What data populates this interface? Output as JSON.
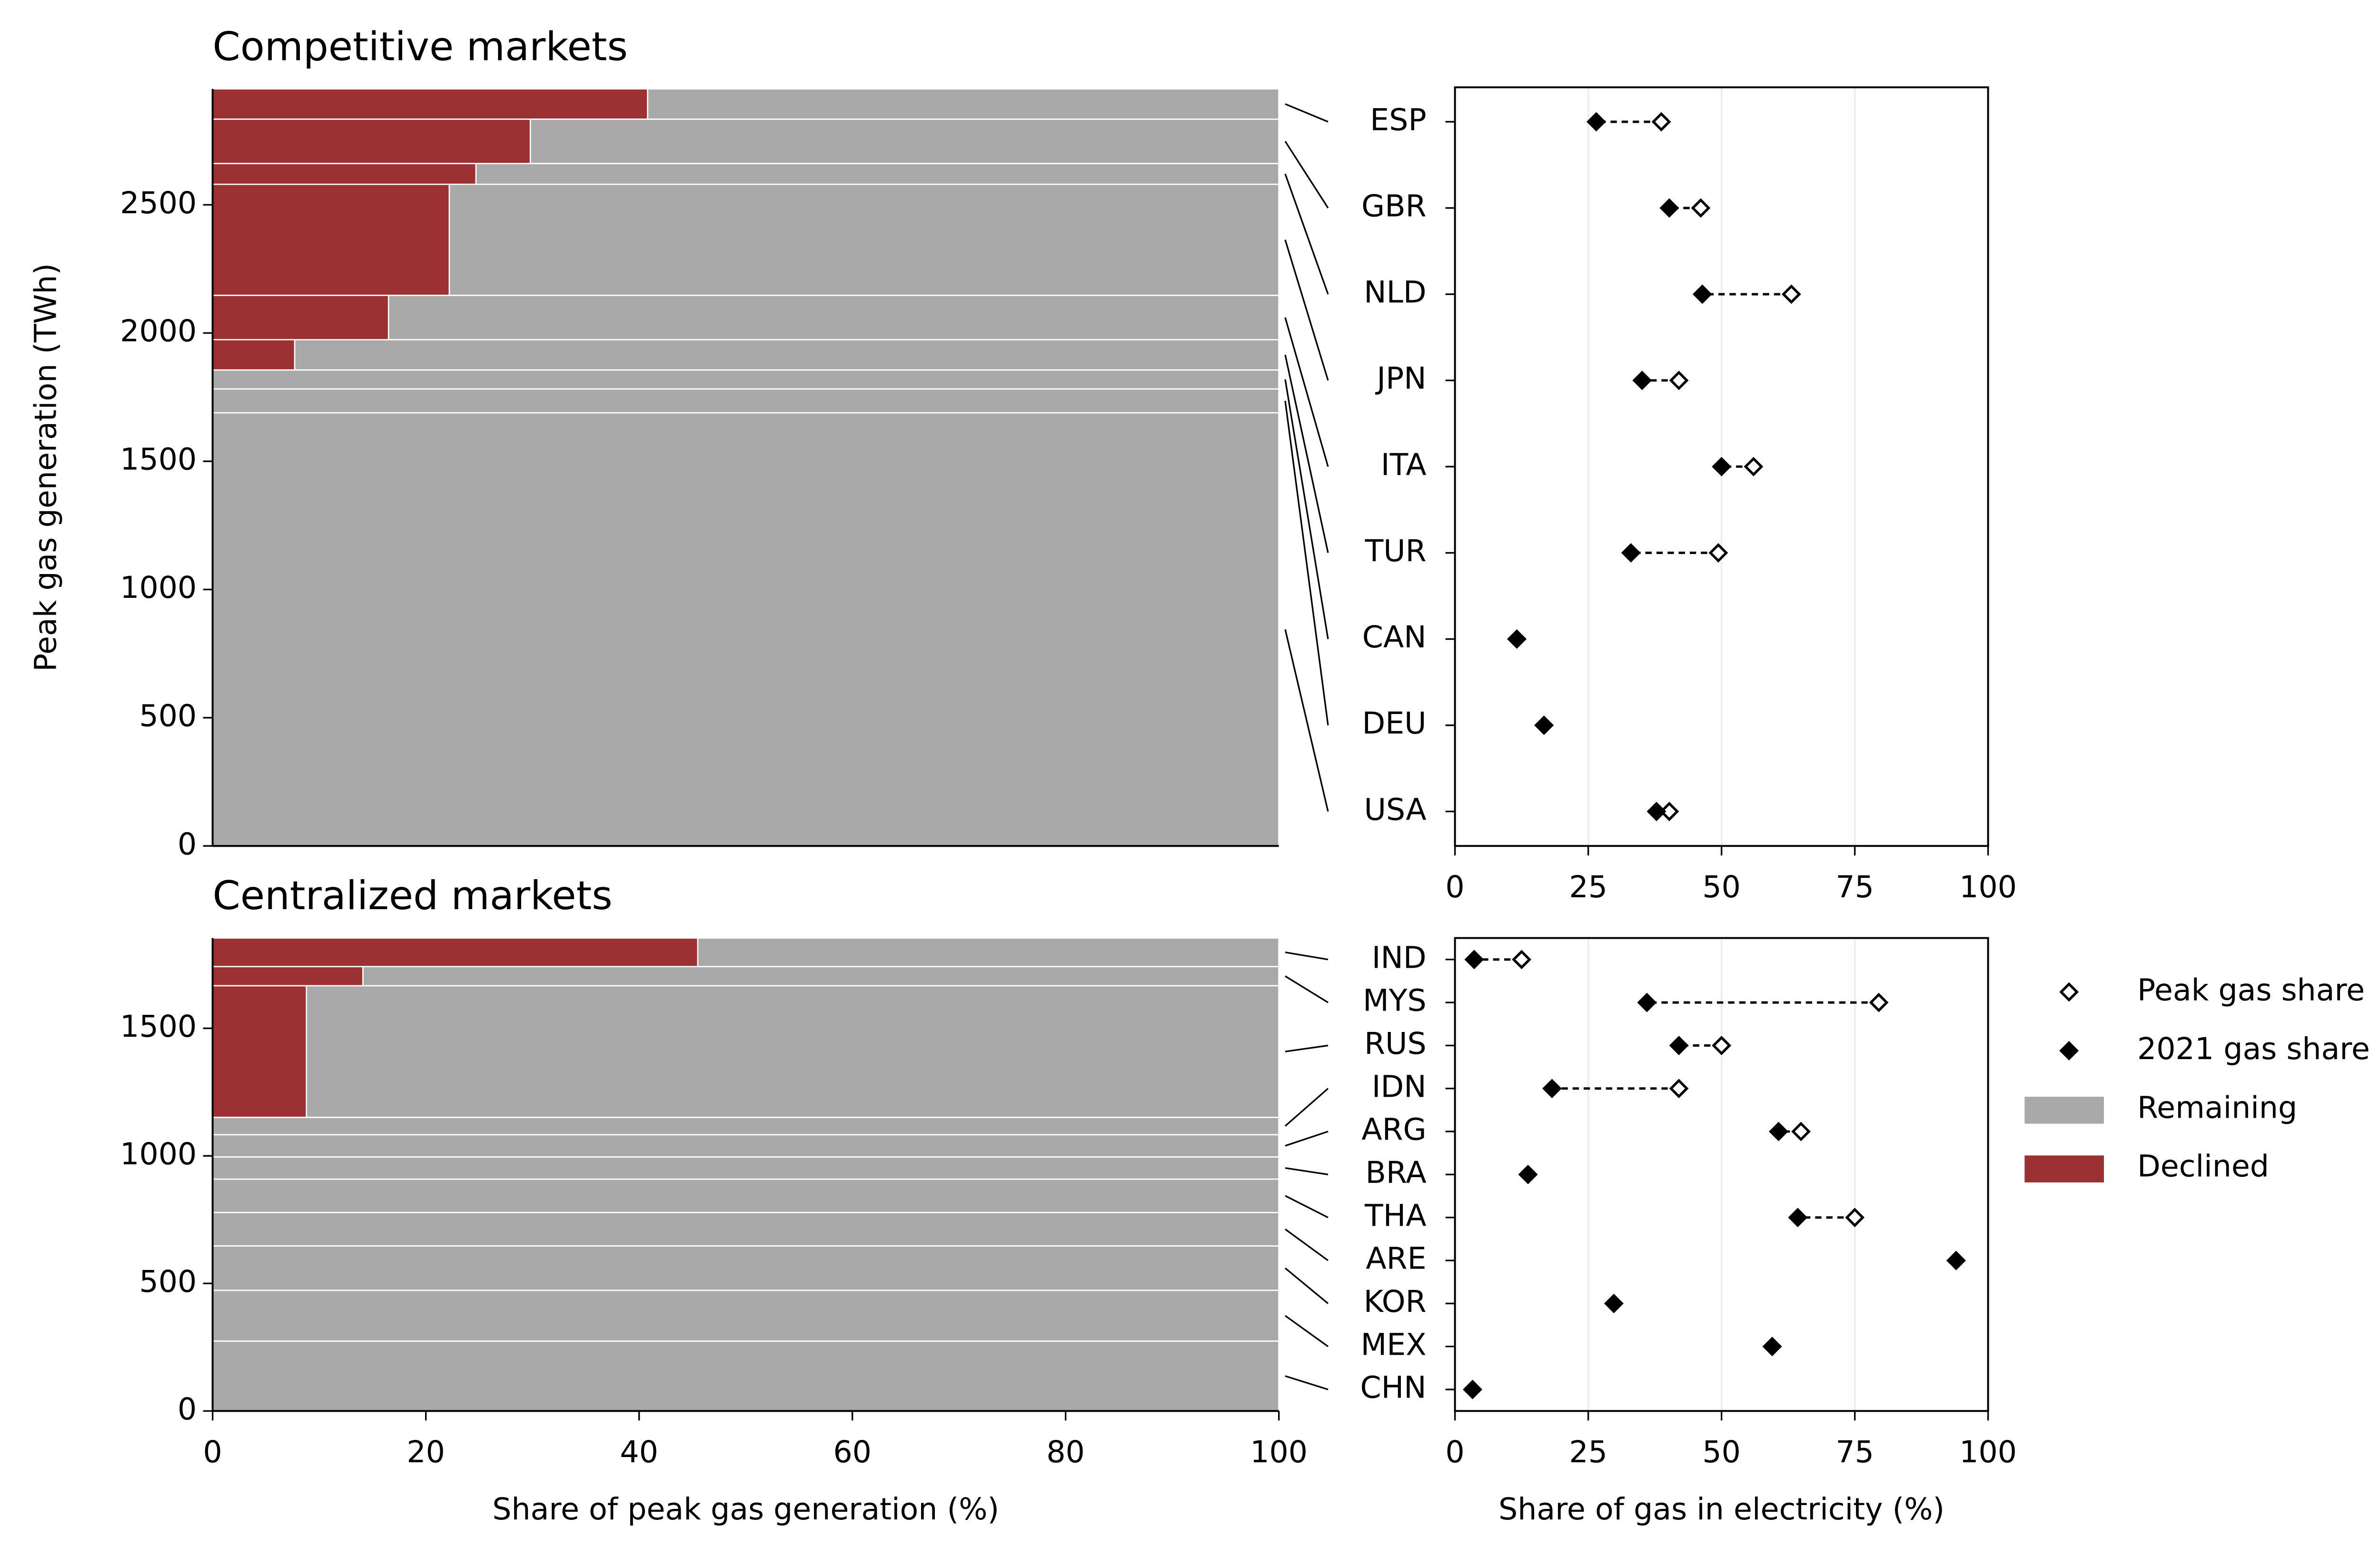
{
  "chart_data": [
    {
      "type": "mekko",
      "title": "Competitive markets",
      "ylabel": "Peak gas generation (TWh)",
      "sizes": [
        118,
        173,
        81,
        433,
        173,
        118,
        74,
        93,
        1689
      ],
      "series": [
        {
          "color": "#9b3133",
          "values": [
            40.8,
            29.8,
            24.7,
            22.2,
            16.5,
            7.7,
            0,
            0,
            0
          ]
        },
        {
          "color": "#a9a9a9",
          "values": [
            59.2,
            70.2,
            75.3,
            77.8,
            83.5,
            92.3,
            100,
            100,
            100
          ]
        }
      ],
      "xlim": [
        0,
        100
      ],
      "ylim": [
        0,
        2952
      ],
      "yticks": [
        0,
        500,
        1000,
        1500,
        2000,
        2500
      ]
    },
    {
      "type": "dumbbell",
      "categories": [
        "ESP",
        "GBR",
        "NLD",
        "JPN",
        "ITA",
        "TUR",
        "CAN",
        "DEU",
        "USA"
      ],
      "series": [
        {
          "color": "#000000",
          "values": [
            38.7,
            46.1,
            63.1,
            42.0,
            56.0,
            49.4,
            11.6,
            16.7,
            40.2
          ]
        },
        {
          "color": "#000000",
          "values": [
            26.5,
            40.2,
            46.4,
            35.1,
            50.0,
            33.0,
            11.6,
            16.7,
            37.8
          ]
        }
      ],
      "xlim": [
        0,
        100
      ],
      "xticks": [
        0,
        25,
        50,
        75,
        100
      ],
      "grid": true
    },
    {
      "type": "mekko",
      "title": "Centralized markets",
      "xlabel": "Share of peak gas generation (%)",
      "sizes": [
        112,
        75,
        516,
        68,
        87,
        87,
        131,
        131,
        174,
        199,
        274
      ],
      "series": [
        {
          "name": "Declined",
          "color": "#9b3133",
          "values": [
            45.5,
            14.1,
            8.8,
            0,
            0,
            0,
            0,
            0,
            0,
            0,
            0
          ]
        },
        {
          "name": "Remaining",
          "color": "#a9a9a9",
          "values": [
            54.5,
            85.9,
            91.2,
            100,
            100,
            100,
            100,
            100,
            100,
            100,
            100
          ]
        }
      ],
      "xlim": [
        0,
        100
      ],
      "xticks": [
        0,
        20,
        40,
        60,
        80,
        100
      ],
      "ylim": [
        0,
        1854
      ],
      "yticks": [
        0,
        500,
        1000,
        1500
      ]
    },
    {
      "type": "dumbbell",
      "xlabel": "Share of gas in electricity (%)",
      "categories": [
        "IND",
        "MYS",
        "RUS",
        "IDN",
        "ARG",
        "BRA",
        "THA",
        "ARE",
        "KOR",
        "MEX",
        "CHN"
      ],
      "series": [
        {
          "name": "Peak gas share",
          "color": "#000000",
          "values": [
            12.5,
            79.5,
            50.0,
            42.0,
            64.9,
            13.7,
            75.0,
            94.0,
            29.8,
            59.5,
            3.3
          ]
        },
        {
          "name": "2021 gas share",
          "color": "#000000",
          "values": [
            3.6,
            36.0,
            42.0,
            18.2,
            60.7,
            13.7,
            64.3,
            94.0,
            29.8,
            59.5,
            3.3
          ]
        }
      ],
      "xlim": [
        0,
        100
      ],
      "xticks": [
        0,
        25,
        50,
        75,
        100
      ],
      "grid": true,
      "legend": "outside right"
    }
  ]
}
